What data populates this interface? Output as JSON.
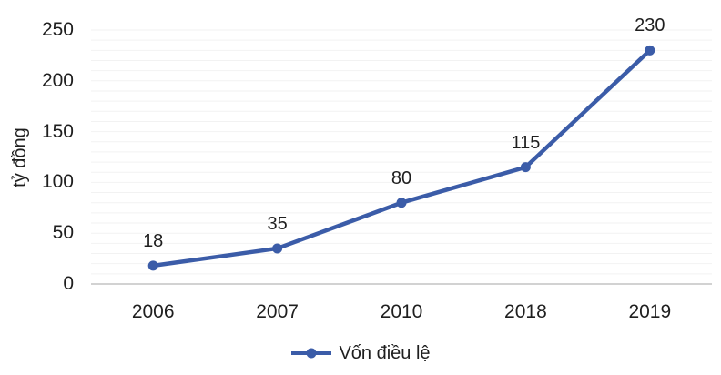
{
  "chart_data": {
    "type": "line",
    "title": "",
    "categories": [
      "2006",
      "2007",
      "2010",
      "2018",
      "2019"
    ],
    "series": [
      {
        "name": "Vốn điều lệ",
        "values": [
          18,
          35,
          80,
          115,
          230
        ],
        "data_labels": [
          "18",
          "35",
          "80",
          "115",
          "230"
        ],
        "color": "#3B5CA8",
        "marker": "circle"
      }
    ],
    "xlabel": "",
    "ylabel": "tỷ đồng",
    "ylim": [
      0,
      250
    ],
    "yticks": [
      0,
      50,
      100,
      150,
      200,
      250
    ],
    "minor_gridline_step": 10,
    "grid": "horizontal-minor",
    "legend_position": "bottom"
  },
  "colors": {
    "series_line": "#3B5CA8",
    "gridline": "#F2F2F2",
    "axis_line": "#C3C3C3",
    "label_text": "#1F1F1F",
    "background": "#FFFFFF"
  }
}
